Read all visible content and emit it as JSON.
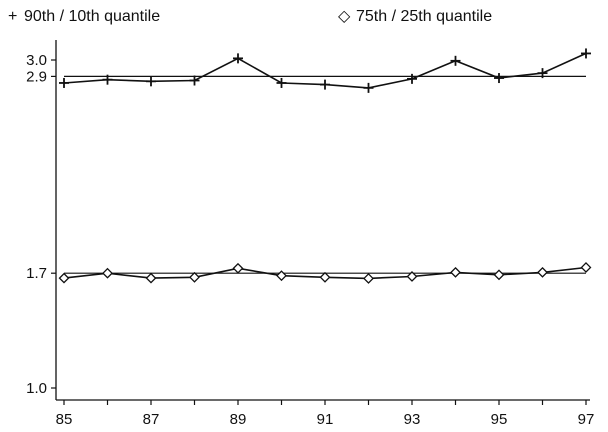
{
  "chart_data": {
    "type": "line",
    "title": "",
    "xlabel": "",
    "ylabel": "",
    "x": [
      85,
      86,
      87,
      88,
      89,
      90,
      91,
      92,
      93,
      94,
      95,
      96,
      97
    ],
    "xticks": [
      85,
      87,
      89,
      91,
      93,
      95,
      97
    ],
    "xlim": [
      85,
      97
    ],
    "yticks": [
      1.0,
      1.7,
      2.9,
      3.0
    ],
    "ytick_labels": [
      "1.0",
      "1.7",
      "2.9",
      "3.0"
    ],
    "ylim": [
      1.0,
      3.0
    ],
    "grid": false,
    "legend_position": "top",
    "series": [
      {
        "name": "90th / 10th quantile",
        "marker": "+",
        "color": "#111111",
        "values": [
          2.86,
          2.88,
          2.87,
          2.875,
          3.01,
          2.86,
          2.85,
          2.83,
          2.885,
          2.995,
          2.89,
          2.92,
          3.04
        ]
      },
      {
        "name": "75th / 25th quantile",
        "marker": "◇",
        "color": "#111111",
        "values": [
          1.67,
          1.7,
          1.67,
          1.675,
          1.73,
          1.685,
          1.675,
          1.668,
          1.68,
          1.705,
          1.69,
          1.705,
          1.735
        ]
      }
    ],
    "reference_lines": [
      {
        "axis": "y",
        "value": 2.9
      },
      {
        "axis": "y",
        "value": 1.7
      }
    ]
  }
}
